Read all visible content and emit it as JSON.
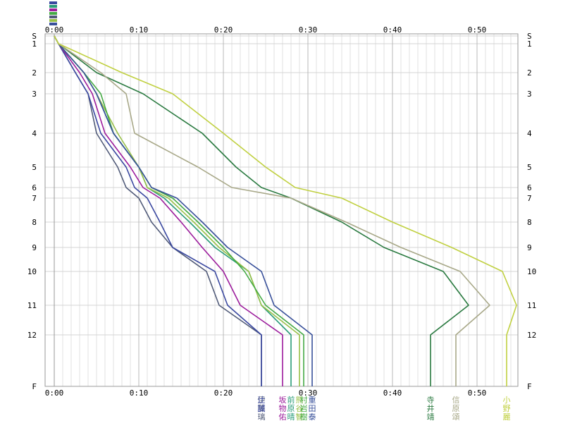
{
  "chart_data": {
    "type": "line",
    "xlabel": "",
    "ylabel": "",
    "x_unit": "minutes",
    "xlim": [
      0,
      56
    ],
    "x_ticks": [
      {
        "value": 0,
        "label": "0:00"
      },
      {
        "value": 10,
        "label": "0:10"
      },
      {
        "value": 20,
        "label": "0:20"
      },
      {
        "value": 30,
        "label": "0:30"
      },
      {
        "value": 40,
        "label": "0:40"
      },
      {
        "value": 50,
        "label": "0:50"
      }
    ],
    "y_ticks": [
      {
        "key": "S",
        "label": "S"
      },
      {
        "key": "1",
        "label": "1"
      },
      {
        "key": "2",
        "label": "2"
      },
      {
        "key": "3",
        "label": "3"
      },
      {
        "key": "4",
        "label": "4"
      },
      {
        "key": "5",
        "label": "5"
      },
      {
        "key": "6",
        "label": "6"
      },
      {
        "key": "7",
        "label": "7"
      },
      {
        "key": "8",
        "label": "8"
      },
      {
        "key": "9",
        "label": "9"
      },
      {
        "key": "10",
        "label": "10"
      },
      {
        "key": "11",
        "label": "11"
      },
      {
        "key": "12",
        "label": "12"
      },
      {
        "key": "F",
        "label": "F"
      }
    ],
    "grid": true,
    "legend": "bottom",
    "series": [
      {
        "name": "伊藤 璃",
        "color": "#505a78",
        "times": [
          0,
          0.5,
          2.5,
          4,
          5,
          7.5,
          8.5,
          10,
          11.5,
          14,
          18,
          19.5,
          24.5
        ]
      },
      {
        "name": "辻 誠",
        "color": "#3a48a0",
        "times": [
          0,
          0.5,
          2.5,
          4,
          5.5,
          8.5,
          9.5,
          11,
          12.5,
          14,
          19,
          20.5,
          24.5
        ]
      },
      {
        "name": "坂 物 佑",
        "color": "#9c1c9c",
        "times": [
          0,
          0.5,
          3,
          4.5,
          6,
          9,
          10.5,
          12.5,
          15,
          17.5,
          20,
          22,
          27
        ]
      },
      {
        "name": "前 原 晴",
        "color": "#2a9c78",
        "times": [
          0,
          0.5,
          3.5,
          5,
          7,
          10,
          11,
          13,
          16,
          19,
          23,
          24.5,
          28
        ]
      },
      {
        "name": "熊 谷 智",
        "color": "#98c048",
        "times": [
          0,
          0.5,
          3.5,
          5,
          7.5,
          10,
          11,
          13.5,
          16.5,
          19.5,
          23,
          24.5,
          29
        ]
      },
      {
        "name": "村 岩 樹",
        "color": "#44aa44",
        "times": [
          0,
          0.5,
          3.5,
          5.5,
          7,
          10,
          11.5,
          14,
          17,
          20,
          22.5,
          25,
          29.5
        ]
      },
      {
        "name": "重 田 泰",
        "color": "#38509a",
        "times": [
          0,
          0.5,
          3.5,
          5,
          7,
          10,
          11.5,
          14.5,
          17.5,
          20.5,
          24.5,
          26,
          30.5
        ]
      },
      {
        "name": "寺 井 靖",
        "color": "#2a7a40",
        "times": [
          0,
          0.5,
          5,
          10.5,
          17.5,
          21.5,
          24.5,
          28,
          34,
          39,
          46,
          49,
          44.5
        ]
      },
      {
        "name": "信 原 頌",
        "color": "#a8a888",
        "times": [
          0,
          0.5,
          5.5,
          8.5,
          9.5,
          17,
          21,
          28,
          34.5,
          41,
          48,
          51.5,
          47.5
        ]
      },
      {
        "name": "小 野 麗",
        "color": "#c0d040",
        "times": [
          0,
          0.5,
          8,
          14,
          20,
          25,
          28.5,
          34,
          40,
          47,
          53,
          58,
          53.5
        ]
      }
    ]
  }
}
